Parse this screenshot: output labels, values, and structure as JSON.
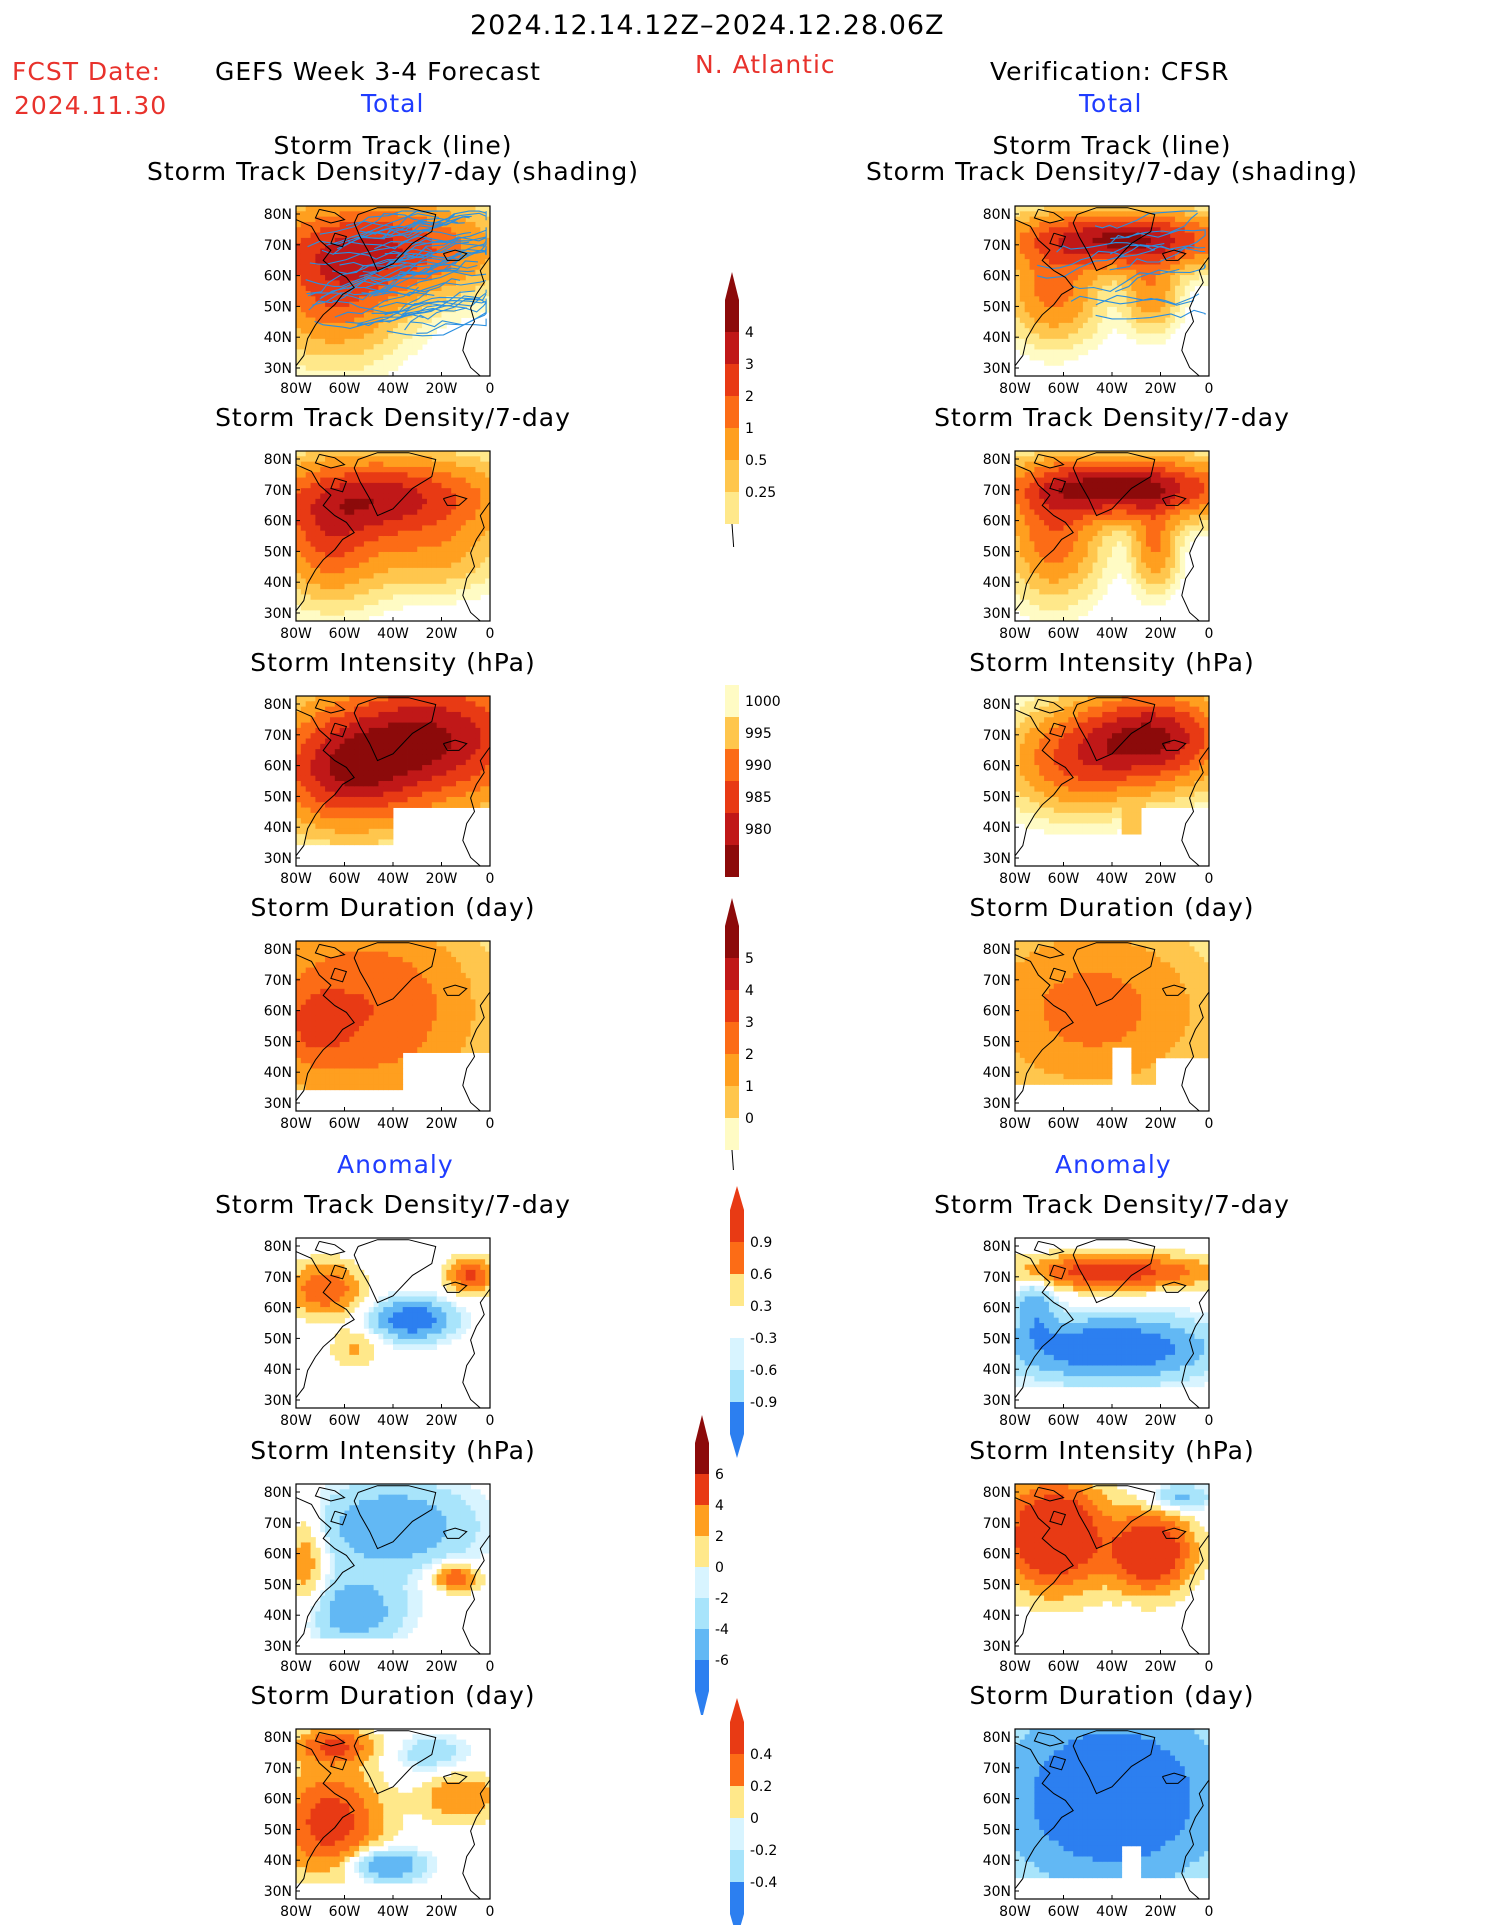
{
  "header": {
    "period": "2024.12.14.12Z–2024.12.28.06Z",
    "fcst_label": "FCST Date:",
    "fcst_date": "2024.11.30",
    "model": "GEFS Week 3-4 Forecast",
    "region": "N. Atlantic",
    "verification": "Verification: CFSR",
    "total_left": "Total",
    "total_right": "Total",
    "anomaly_left": "Anomaly",
    "anomaly_right": "Anomaly"
  },
  "panels": {
    "p1_title": "Storm Track (line)",
    "p1_sub": "Storm Track Density/7-day (shading)",
    "p2": "Storm Track Density/7-day",
    "p3": "Storm Intensity (hPa)",
    "p4": "Storm Duration (day)",
    "p5": "Storm Track Density/7-day",
    "p6": "Storm Intensity (hPa)",
    "p7": "Storm Duration (day)"
  },
  "axes": {
    "lat": [
      "80N",
      "70N",
      "60N",
      "50N",
      "40N",
      "30N"
    ],
    "lon": [
      "80W",
      "60W",
      "40W",
      "20W",
      "0"
    ]
  },
  "colorbars": {
    "density_total": [
      "4",
      "3",
      "2",
      "1",
      "0.5",
      "0.25"
    ],
    "intensity_total": [
      "1000",
      "995",
      "990",
      "985",
      "980"
    ],
    "duration_total": [
      "5",
      "4",
      "3",
      "2",
      "1",
      "0"
    ],
    "density_anom": [
      "0.9",
      "0.6",
      "0.3",
      "-0.3",
      "-0.6",
      "-0.9"
    ],
    "intensity_anom": [
      "6",
      "4",
      "2",
      "0",
      "-2",
      "-4",
      "-6"
    ],
    "duration_anom": [
      "0.4",
      "0.2",
      "0",
      "-0.2",
      "-0.4"
    ]
  },
  "colors": {
    "warm": [
      "#fffbc4",
      "#ffe88a",
      "#ffc64d",
      "#ff9f1f",
      "#fc6c16",
      "#e83a14",
      "#c01818",
      "#8c0a0a"
    ],
    "cool": [
      "#d8f4ff",
      "#a8e4fb",
      "#62b8f4",
      "#2c7ff0",
      "#1a5bd6"
    ],
    "track_line": "#2a8fe0",
    "title_red": "#e8322c",
    "title_blue": "#1f3cff"
  },
  "chart_data": [
    {
      "type": "heatmap",
      "title": "Storm Track (line) / Storm Track Density/7-day (shading)",
      "column": "GEFS Week 3-4 Forecast",
      "section": "Total",
      "xlim": [
        -80,
        0
      ],
      "ylim": [
        25,
        85
      ]
    },
    {
      "type": "heatmap",
      "title": "Storm Track Density/7-day",
      "column": "GEFS Week 3-4 Forecast",
      "section": "Total"
    },
    {
      "type": "heatmap",
      "title": "Storm Intensity (hPa)",
      "column": "GEFS Week 3-4 Forecast",
      "section": "Total"
    },
    {
      "type": "heatmap",
      "title": "Storm Duration (day)",
      "column": "GEFS Week 3-4 Forecast",
      "section": "Total"
    },
    {
      "type": "heatmap",
      "title": "Storm Track Density/7-day",
      "column": "GEFS Week 3-4 Forecast",
      "section": "Anomaly"
    },
    {
      "type": "heatmap",
      "title": "Storm Intensity (hPa)",
      "column": "GEFS Week 3-4 Forecast",
      "section": "Anomaly"
    },
    {
      "type": "heatmap",
      "title": "Storm Duration (day)",
      "column": "GEFS Week 3-4 Forecast",
      "section": "Anomaly"
    },
    {
      "type": "heatmap",
      "title": "Storm Track (line) / Storm Track Density/7-day (shading)",
      "column": "Verification: CFSR",
      "section": "Total"
    },
    {
      "type": "heatmap",
      "title": "Storm Track Density/7-day",
      "column": "Verification: CFSR",
      "section": "Total"
    },
    {
      "type": "heatmap",
      "title": "Storm Intensity (hPa)",
      "column": "Verification: CFSR",
      "section": "Total"
    },
    {
      "type": "heatmap",
      "title": "Storm Duration (day)",
      "column": "Verification: CFSR",
      "section": "Total"
    },
    {
      "type": "heatmap",
      "title": "Storm Track Density/7-day",
      "column": "Verification: CFSR",
      "section": "Anomaly"
    },
    {
      "type": "heatmap",
      "title": "Storm Intensity (hPa)",
      "column": "Verification: CFSR",
      "section": "Anomaly"
    },
    {
      "type": "heatmap",
      "title": "Storm Duration (day)",
      "column": "Verification: CFSR",
      "section": "Anomaly"
    }
  ]
}
